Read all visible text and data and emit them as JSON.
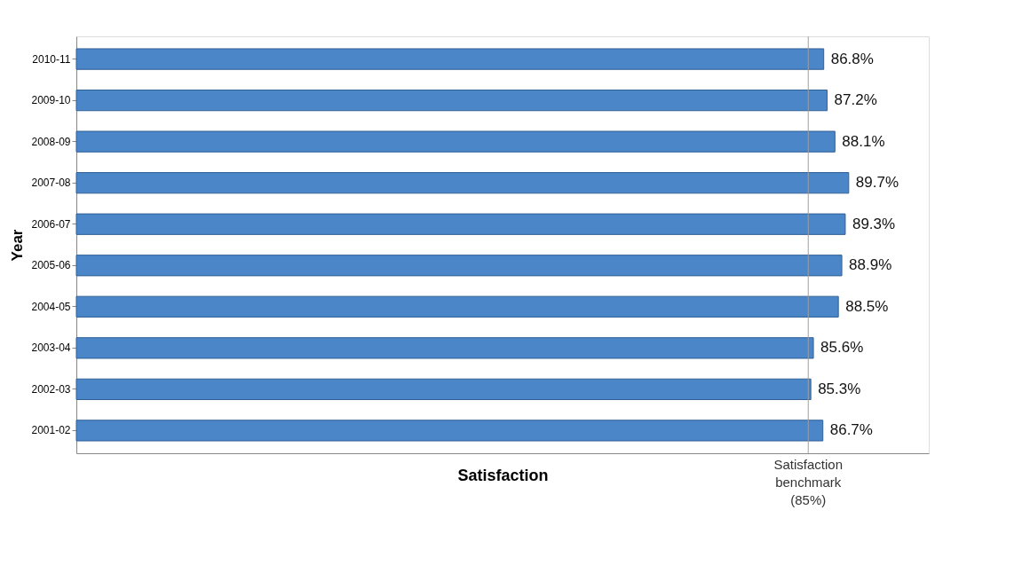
{
  "chart_data": {
    "type": "bar",
    "orientation": "horizontal",
    "xlabel": "Satisfaction",
    "ylabel": "Year",
    "categories": [
      "2010-11",
      "2009-10",
      "2008-09",
      "2007-08",
      "2006-07",
      "2005-06",
      "2004-05",
      "2003-04",
      "2002-03",
      "2001-02"
    ],
    "values": [
      86.8,
      87.2,
      88.1,
      89.7,
      89.3,
      88.9,
      88.5,
      85.6,
      85.3,
      86.7
    ],
    "value_labels": [
      "86.8%",
      "87.2%",
      "88.1%",
      "89.7%",
      "89.3%",
      "88.9%",
      "88.5%",
      "85.6%",
      "85.3%",
      "86.7%"
    ],
    "color": "#4a86c8",
    "xlim": [
      0,
      99
    ],
    "grid": false,
    "tick_labels": "y",
    "ref_lines": [
      {
        "axis": "x",
        "value": 85,
        "label": "Satisfaction benchmark (85%)",
        "color": "#a0a0a0"
      }
    ]
  }
}
